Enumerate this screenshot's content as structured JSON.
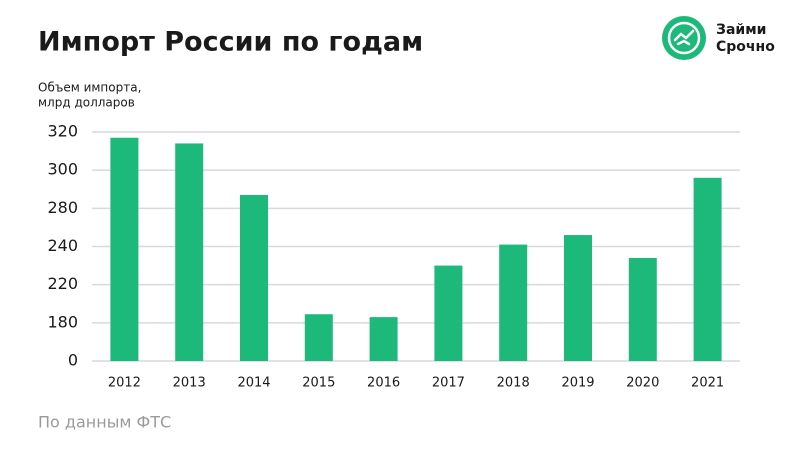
{
  "chart_data": {
    "type": "bar",
    "title": "Импорт России по годам",
    "ylabel": [
      "Объем импорта,",
      "млрд долларов"
    ],
    "categories": [
      "2012",
      "2013",
      "2014",
      "2015",
      "2016",
      "2017",
      "2018",
      "2019",
      "2020",
      "2021"
    ],
    "values": [
      317,
      314,
      287,
      189,
      186,
      230,
      242,
      252,
      234,
      296
    ],
    "color": "#1db97a",
    "ylim": [
      0,
      320
    ],
    "yticks": [
      0,
      180,
      220,
      240,
      280,
      300,
      320
    ],
    "grid": true,
    "source": "По данным ФТС"
  },
  "logo": {
    "lines": [
      "Займи",
      "Срочно"
    ],
    "color": "#1db97a"
  }
}
